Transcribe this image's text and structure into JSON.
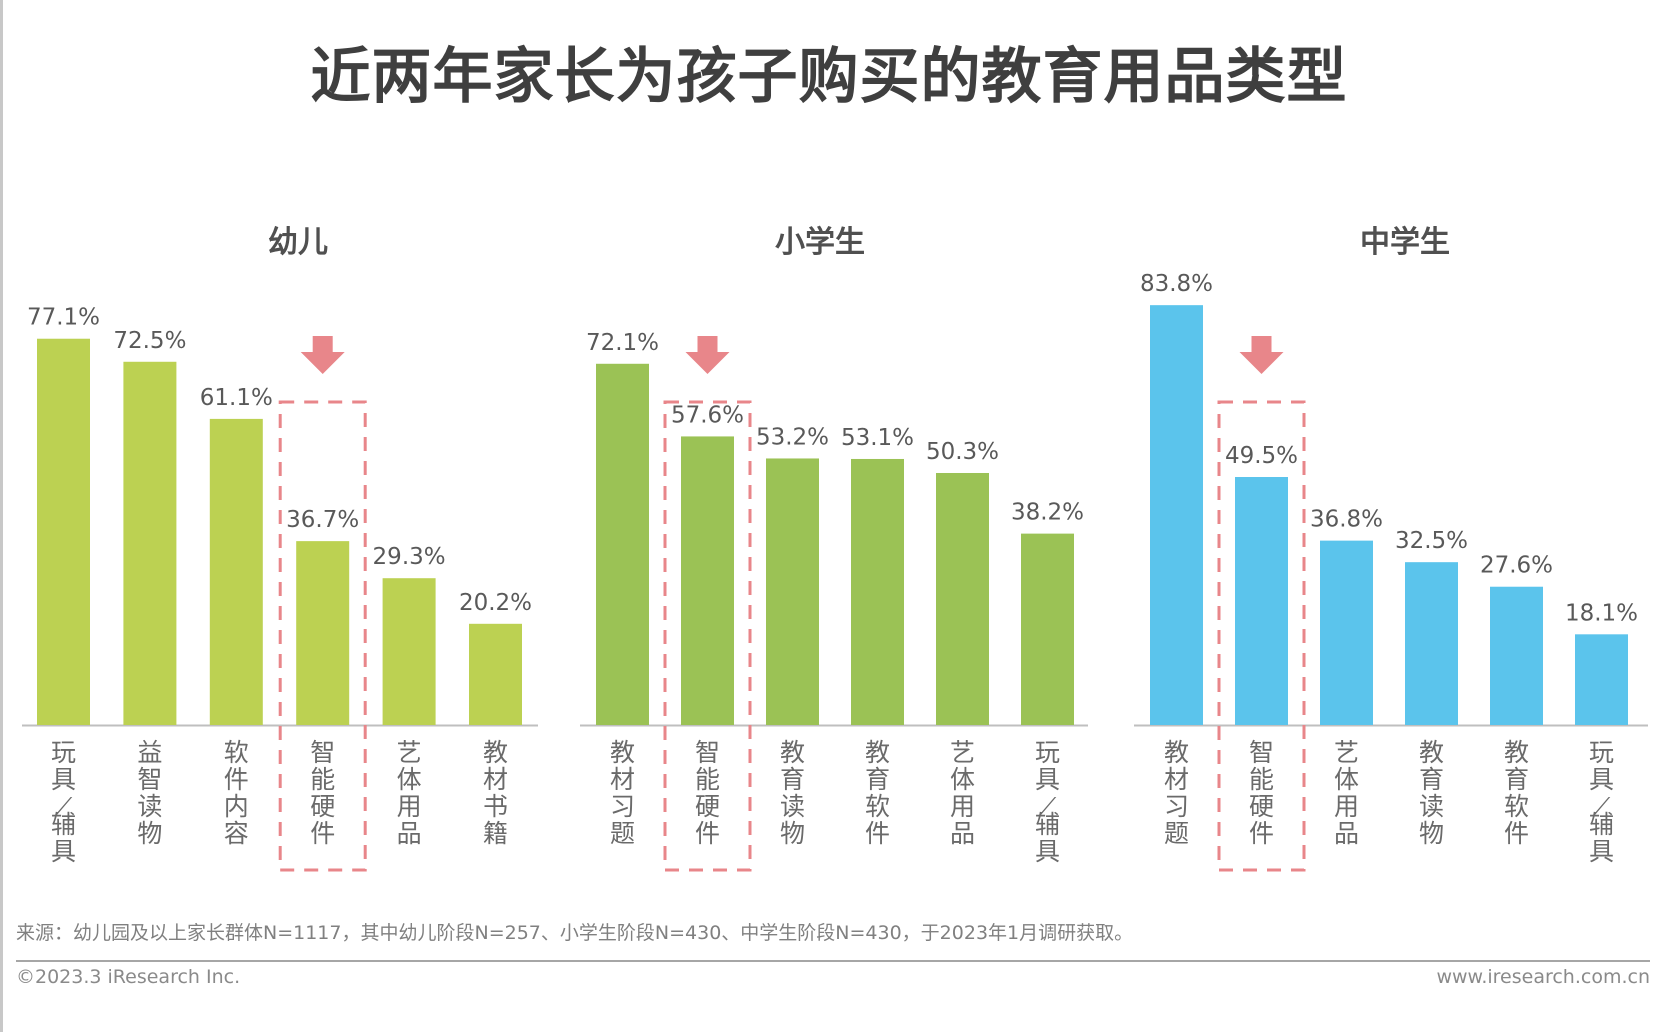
{
  "title": "近两年家长为孩子购买的教育用品类型",
  "colors": {
    "kindergarten": "#BCD152",
    "primary": "#9BC255",
    "secondary": "#5BC4EC",
    "highlight": "#E8868A",
    "axis": "#bfbfbf",
    "label_text": "#595959"
  },
  "chart_data": [
    {
      "type": "bar",
      "title": "幼儿",
      "categories": [
        "玩具/辅具",
        "益智读物",
        "软件内容",
        "智能硬件",
        "艺体用品",
        "教材书籍"
      ],
      "values": [
        77.1,
        72.5,
        61.1,
        36.7,
        29.3,
        20.2
      ],
      "value_labels": [
        "77.1%",
        "72.5%",
        "61.1%",
        "36.7%",
        "29.3%",
        "20.2%"
      ],
      "unit": "%",
      "highlight_category": "智能硬件",
      "highlight_index": 3,
      "color_key": "kindergarten",
      "xlabel": "",
      "ylabel": "",
      "ylim": [
        0,
        100
      ],
      "grid": false,
      "legend": "none"
    },
    {
      "type": "bar",
      "title": "小学生",
      "categories": [
        "教材习题",
        "智能硬件",
        "教育读物",
        "教育软件",
        "艺体用品",
        "玩具/辅具"
      ],
      "values": [
        72.1,
        57.6,
        53.2,
        53.1,
        50.3,
        38.2
      ],
      "value_labels": [
        "72.1%",
        "57.6%",
        "53.2%",
        "53.1%",
        "50.3%",
        "38.2%"
      ],
      "unit": "%",
      "highlight_category": "智能硬件",
      "highlight_index": 1,
      "color_key": "primary",
      "xlabel": "",
      "ylabel": "",
      "ylim": [
        0,
        100
      ],
      "grid": false,
      "legend": "none"
    },
    {
      "type": "bar",
      "title": "中学生",
      "categories": [
        "教材习题",
        "智能硬件",
        "艺体用品",
        "教育读物",
        "教育软件",
        "玩具/辅具"
      ],
      "values": [
        83.8,
        49.5,
        36.8,
        32.5,
        27.6,
        18.1
      ],
      "value_labels": [
        "83.8%",
        "49.5%",
        "36.8%",
        "32.5%",
        "27.6%",
        "18.1%"
      ],
      "unit": "%",
      "highlight_category": "智能硬件",
      "highlight_index": 1,
      "color_key": "secondary",
      "xlabel": "",
      "ylabel": "",
      "ylim": [
        0,
        100
      ],
      "grid": false,
      "legend": "none"
    }
  ],
  "footer": {
    "source": "来源：幼儿园及以上家长群体N=1117，其中幼儿阶段N=257、小学生阶段N=430、中学生阶段N=430，于2023年1月调研获取。",
    "copyright": "©2023.3 iResearch Inc.",
    "website": "www.iresearch.com.cn"
  }
}
